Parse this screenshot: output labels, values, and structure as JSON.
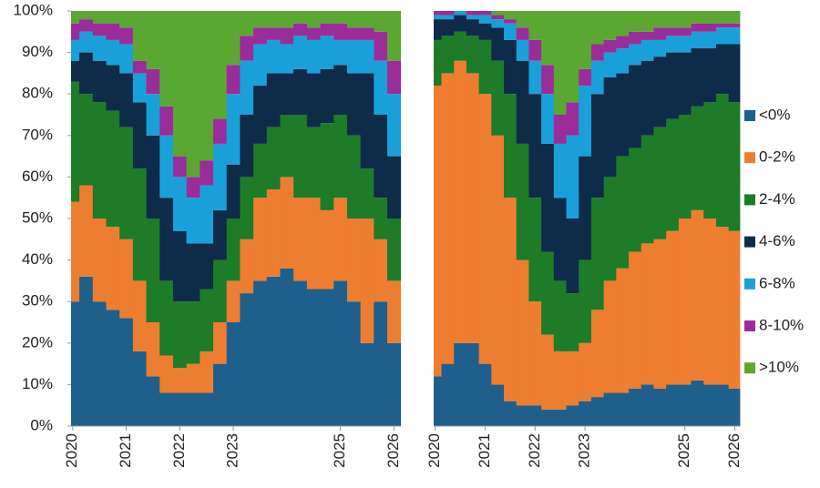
{
  "chart_data": [
    {
      "type": "bar",
      "stacked": true,
      "x": [
        2020,
        2020.25,
        2020.5,
        2020.75,
        2021,
        2021.25,
        2021.5,
        2021.75,
        2022,
        2022.25,
        2022.5,
        2022.75,
        2023,
        2023.25,
        2023.5,
        2023.75,
        2024,
        2024.25,
        2024.5,
        2024.75,
        2025,
        2025.25,
        2025.5,
        2025.75,
        2026
      ],
      "xlim": [
        2019.97,
        2026.13
      ],
      "xticks": [
        2020,
        2021,
        2022,
        2023,
        2025,
        2026
      ],
      "ylim": [
        0,
        100
      ],
      "yticks": [
        {
          "value": 0,
          "label": "0%"
        },
        {
          "value": 10,
          "label": "10%"
        },
        {
          "value": 20,
          "label": "20%"
        },
        {
          "value": 30,
          "label": "30%"
        },
        {
          "value": 40,
          "label": "40%"
        },
        {
          "value": 50,
          "label": "50%"
        },
        {
          "value": 60,
          "label": "60%"
        },
        {
          "value": 70,
          "label": "70%"
        },
        {
          "value": 80,
          "label": "80%"
        },
        {
          "value": 90,
          "label": "90%"
        },
        {
          "value": 100,
          "label": "100%"
        }
      ],
      "series": [
        {
          "color": "#1f5f8b",
          "values": [
            30,
            36,
            30,
            28,
            26,
            18,
            12,
            8,
            8,
            8,
            8,
            15,
            25,
            32,
            35,
            36,
            38,
            35,
            33,
            33,
            35,
            30,
            20,
            30,
            20
          ]
        },
        {
          "color": "#ed7d31",
          "values": [
            24,
            22,
            20,
            20,
            19,
            17,
            13,
            9,
            6,
            7,
            10,
            10,
            10,
            13,
            20,
            21,
            22,
            20,
            22,
            19,
            20,
            20,
            30,
            15,
            15
          ]
        },
        {
          "color": "#1e7b27",
          "values": [
            29,
            22,
            28,
            28,
            27,
            27,
            25,
            18,
            16,
            15,
            15,
            15,
            15,
            15,
            13,
            15,
            15,
            20,
            17,
            21,
            20,
            20,
            12,
            10,
            15
          ]
        },
        {
          "color": "#0e2c4a",
          "values": [
            5,
            10,
            10,
            11,
            13,
            16,
            20,
            20,
            17,
            14,
            11,
            12,
            13,
            15,
            14,
            13,
            10,
            11,
            13,
            13,
            12,
            15,
            23,
            20,
            15
          ]
        },
        {
          "color": "#1aa0d8",
          "values": [
            5,
            5,
            6,
            6,
            7,
            7,
            10,
            15,
            13,
            11,
            14,
            16,
            17,
            13,
            10,
            8,
            7,
            8,
            8,
            8,
            6,
            8,
            8,
            13,
            15
          ]
        },
        {
          "color": "#9b2d9b",
          "values": [
            4,
            3,
            3,
            4,
            4,
            3,
            6,
            7,
            5,
            5,
            6,
            6,
            7,
            6,
            4,
            3,
            4,
            3,
            3,
            3,
            4,
            3,
            3,
            7,
            8
          ]
        },
        {
          "color": "#5aa832",
          "values": [
            3,
            2,
            3,
            3,
            4,
            12,
            14,
            23,
            35,
            40,
            36,
            26,
            13,
            6,
            4,
            4,
            4,
            3,
            4,
            3,
            3,
            4,
            4,
            5,
            12
          ]
        }
      ]
    },
    {
      "type": "bar",
      "stacked": true,
      "x": [
        2020,
        2020.25,
        2020.5,
        2020.75,
        2021,
        2021.25,
        2021.5,
        2021.75,
        2022,
        2022.25,
        2022.5,
        2022.75,
        2023,
        2023.25,
        2023.5,
        2023.75,
        2024,
        2024.25,
        2024.5,
        2024.75,
        2025,
        2025.25,
        2025.5,
        2025.75,
        2026
      ],
      "xlim": [
        2019.97,
        2026.1
      ],
      "xticks": [
        2020,
        2021,
        2022,
        2023,
        2025,
        2026
      ],
      "ylim": [
        0,
        100
      ],
      "legend": "right",
      "series": [
        {
          "name": "<0%",
          "color": "#1f5f8b",
          "values": [
            12,
            15,
            20,
            20,
            15,
            10,
            6,
            5,
            5,
            4,
            4,
            5,
            6,
            7,
            8,
            8,
            9,
            10,
            9,
            10,
            10,
            11,
            10,
            10,
            9
          ]
        },
        {
          "name": "0-2%",
          "color": "#ed7d31",
          "values": [
            70,
            70,
            68,
            65,
            65,
            60,
            49,
            35,
            25,
            18,
            14,
            13,
            14,
            21,
            27,
            30,
            33,
            34,
            36,
            37,
            40,
            41,
            40,
            38,
            38
          ]
        },
        {
          "name": "2-4%",
          "color": "#1e7b27",
          "values": [
            11,
            9,
            7,
            9,
            13,
            18,
            25,
            28,
            25,
            20,
            17,
            14,
            20,
            27,
            25,
            27,
            25,
            26,
            27,
            27,
            25,
            25,
            28,
            32,
            31
          ]
        },
        {
          "name": "4-6%",
          "color": "#0e2c4a",
          "values": [
            5,
            4,
            4,
            4,
            4,
            8,
            13,
            20,
            25,
            26,
            20,
            18,
            25,
            25,
            24,
            20,
            20,
            18,
            17,
            16,
            15,
            14,
            13,
            12,
            14
          ]
        },
        {
          "name": "6-8%",
          "color": "#1aa0d8",
          "values": [
            1,
            1,
            1,
            1,
            2,
            2,
            4,
            5,
            8,
            12,
            13,
            20,
            17,
            8,
            6,
            6,
            5,
            5,
            4,
            4,
            4,
            4,
            4,
            4,
            4
          ]
        },
        {
          "name": "8-10%",
          "color": "#9b2d9b",
          "values": [
            1,
            1,
            0,
            1,
            1,
            1,
            1,
            3,
            5,
            7,
            7,
            8,
            4,
            4,
            3,
            3,
            3,
            2,
            3,
            2,
            2,
            2,
            2,
            1,
            1
          ]
        },
        {
          "name": ">10%",
          "color": "#5aa832",
          "values": [
            0,
            0,
            0,
            0,
            0,
            1,
            2,
            4,
            7,
            13,
            25,
            22,
            14,
            8,
            7,
            6,
            5,
            5,
            4,
            4,
            4,
            3,
            3,
            3,
            3
          ]
        }
      ]
    }
  ]
}
